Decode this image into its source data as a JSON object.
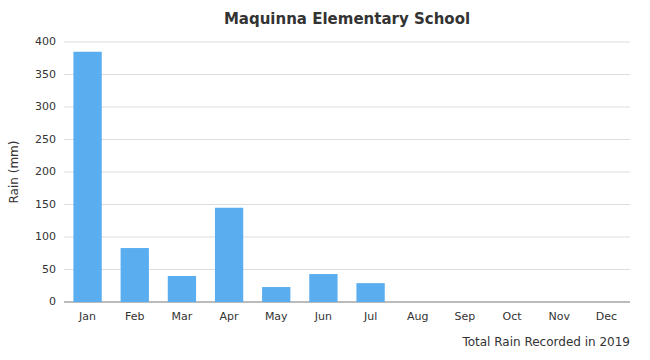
{
  "chart_data": {
    "type": "bar",
    "title": "Maquinna Elementary School",
    "xlabel": "Total Rain Recorded in 2019",
    "ylabel": "Rain (mm)",
    "categories": [
      "Jan",
      "Feb",
      "Mar",
      "Apr",
      "May",
      "Jun",
      "Jul",
      "Aug",
      "Sep",
      "Oct",
      "Nov",
      "Dec"
    ],
    "values": [
      385,
      83,
      40,
      145,
      23,
      43,
      29,
      0,
      0,
      0,
      0,
      0
    ],
    "color": "#5aadee",
    "ylim": [
      0,
      400
    ],
    "yticks": [
      0,
      50,
      100,
      150,
      200,
      250,
      300,
      350,
      400
    ],
    "grid": true
  }
}
